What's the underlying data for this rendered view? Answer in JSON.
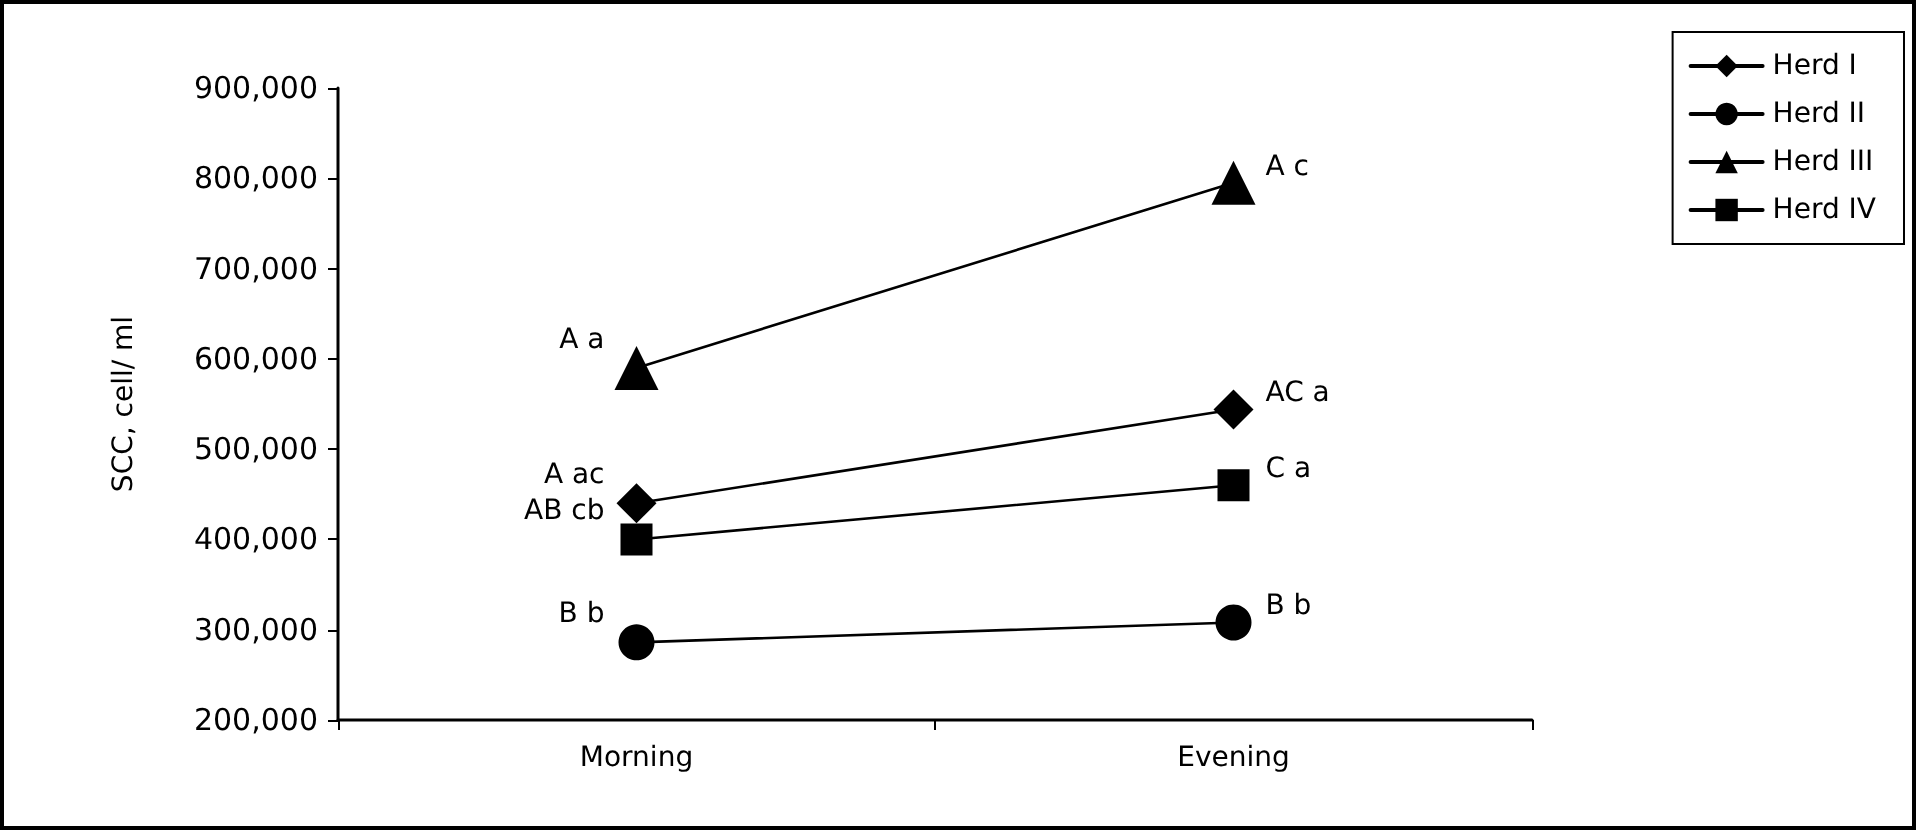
{
  "chart_data": {
    "type": "line",
    "ylabel": "SCC, cell/ ml",
    "categories": [
      "Morning",
      "Evening"
    ],
    "ylim": [
      200000,
      900000
    ],
    "yticks": [
      {
        "value": 200000,
        "label": "200,000"
      },
      {
        "value": 300000,
        "label": "300,000"
      },
      {
        "value": 400000,
        "label": "400,000"
      },
      {
        "value": 500000,
        "label": "500,000"
      },
      {
        "value": 600000,
        "label": "600,000"
      },
      {
        "value": 700000,
        "label": "700,000"
      },
      {
        "value": 800000,
        "label": "800,000"
      },
      {
        "value": 900000,
        "label": "900,000"
      }
    ],
    "grid": false,
    "legend": "top right",
    "line_style": "solid",
    "series": [
      {
        "name": "Herd I",
        "color": "#000000",
        "marker": "diamond",
        "values": [
          440000,
          544000
        ]
      },
      {
        "name": "Herd II",
        "color": "#000000",
        "marker": "circle",
        "values": [
          286000,
          308000
        ]
      },
      {
        "name": "Herd III",
        "color": "#000000",
        "marker": "triangle",
        "values": [
          590000,
          795000
        ]
      },
      {
        "name": "Herd IV",
        "color": "#000000",
        "marker": "square",
        "values": [
          400000,
          460000
        ]
      }
    ],
    "annotations": [
      {
        "text": "A ac",
        "x": "Morning",
        "y": 440000
      },
      {
        "text": "B b",
        "x": "Morning",
        "y": 286000
      },
      {
        "text": "A a",
        "x": "Morning",
        "y": 590000
      },
      {
        "text": "AB cb",
        "x": "Morning",
        "y": 400000
      },
      {
        "text": "AC a",
        "x": "Evening",
        "y": 544000
      },
      {
        "text": "B b",
        "x": "Evening",
        "y": 308000
      },
      {
        "text": "A c",
        "x": "Evening",
        "y": 795000
      },
      {
        "text": "C a",
        "x": "Evening",
        "y": 460000
      }
    ]
  }
}
